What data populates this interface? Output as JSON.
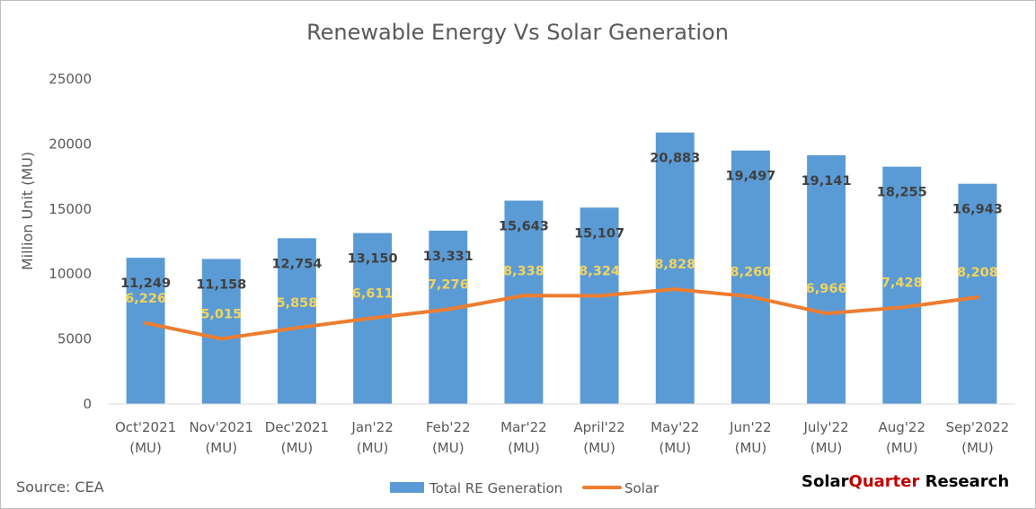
{
  "chart_data": {
    "type": "bar",
    "title": "Renewable Energy Vs Solar Generation",
    "ylabel": "Million Unit (MU)",
    "xlabel": "",
    "ylim": [
      0,
      25000
    ],
    "yticks": [
      0,
      5000,
      10000,
      15000,
      20000,
      25000
    ],
    "categories": [
      [
        "Oct'2021",
        "(MU)"
      ],
      [
        "Nov'2021",
        "(MU)"
      ],
      [
        "Dec'2021",
        "(MU)"
      ],
      [
        "Jan'22",
        "(MU)"
      ],
      [
        "Feb'22",
        "(MU)"
      ],
      [
        "Mar'22",
        "(MU)"
      ],
      [
        "April'22",
        "(MU)"
      ],
      [
        "May'22",
        "(MU)"
      ],
      [
        "Jun'22",
        "(MU)"
      ],
      [
        "July'22",
        "(MU)"
      ],
      [
        "Aug'22",
        "(MU)"
      ],
      [
        "Sep'2022",
        "(MU)"
      ]
    ],
    "series": [
      {
        "name": "Total RE Generation",
        "type": "bar",
        "color": "#5b9bd5",
        "values": [
          11249,
          11158,
          12754,
          13150,
          13331,
          15643,
          15107,
          20883,
          19497,
          19141,
          18255,
          16943
        ],
        "labels": [
          "11,249",
          "11,158",
          "12,754",
          "13,150",
          "13,331",
          "15,643",
          "15,107",
          "20,883",
          "19,497",
          "19,141",
          "18,255",
          "16,943"
        ]
      },
      {
        "name": "Solar",
        "type": "line",
        "color": "#ed7d31",
        "label_color": "#f2d45c",
        "values": [
          6226,
          5015,
          5858,
          6611,
          7276,
          8338,
          8324,
          8828,
          8260,
          6966,
          7428,
          8208
        ],
        "labels": [
          "6,226",
          "5,015",
          "5,858",
          "6,611",
          "7,276",
          "8,338",
          "8,324",
          "8,828",
          "8,260",
          "6,966",
          "7,428",
          "8,208"
        ]
      }
    ],
    "grid": false,
    "legend": "bottom"
  },
  "footer": {
    "source": "Source: CEA",
    "brand_part1": "Solar",
    "brand_part2": "Quarter",
    "brand_part3": " Research",
    "brand_color_dark": "#000000",
    "brand_color_red": "#c00000"
  }
}
